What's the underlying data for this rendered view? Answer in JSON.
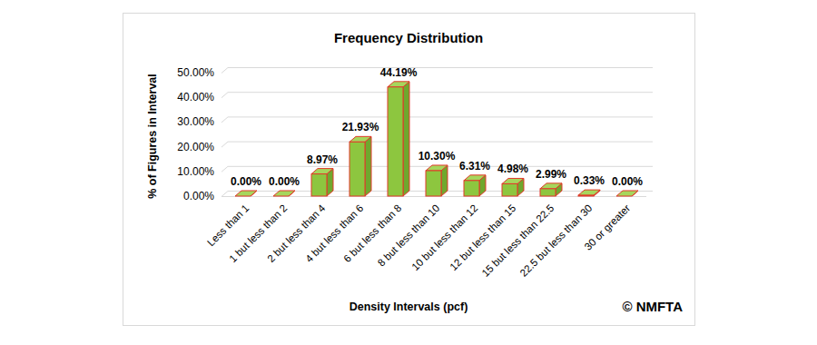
{
  "chart_data": {
    "type": "bar",
    "title": "Frequency Distribution",
    "x_label": "Density Intervals (pcf)",
    "y_label": "% of Figures in Interval",
    "categories": [
      "Less than 1",
      "1 but less than 2",
      "2 but less than 4",
      "4 but less than 6",
      "6 but less than 8",
      "8 but less than 10",
      "10 but less than 12",
      "12 but less than 15",
      "15 but less than 22.5",
      "22.5 but less than 30",
      "30 or greater"
    ],
    "values": [
      0,
      0,
      8.97,
      21.93,
      44.19,
      10.3,
      6.31,
      4.98,
      2.99,
      0.33,
      0
    ],
    "value_labels": [
      "0.00%",
      "0.00%",
      "8.97%",
      "21.93%",
      "44.19%",
      "10.30%",
      "6.31%",
      "4.98%",
      "2.99%",
      "0.33%",
      "0.00%"
    ],
    "color": "#8dc63f",
    "ylim": [
      0,
      50
    ],
    "yticks": [
      {
        "value": 0,
        "label": "0.00%"
      },
      {
        "value": 10,
        "label": "10.00%"
      },
      {
        "value": 20,
        "label": "20.00%"
      },
      {
        "value": 30,
        "label": "30.00%"
      },
      {
        "value": 40,
        "label": "40.00%"
      },
      {
        "value": 50,
        "label": "50.00%"
      }
    ],
    "grid": true,
    "data_labels": true,
    "annotations": [
      "© NMFTA"
    ]
  }
}
